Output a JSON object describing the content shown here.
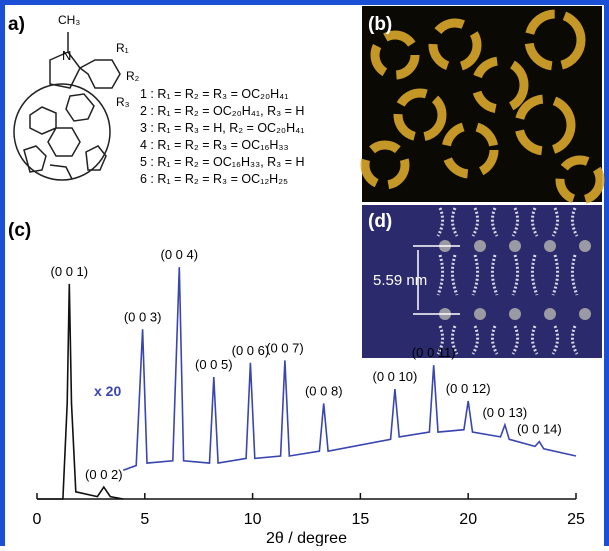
{
  "panels": {
    "a": "a)",
    "b": "(b)",
    "c": "(c)",
    "d": "(d)"
  },
  "structure": {
    "methyl": "CH₃",
    "nitrogen": "N",
    "r1": "R₁",
    "r2": "R₂",
    "r3": "R₃"
  },
  "compounds": [
    "1 : R₁ = R₂ = R₃ = OC₂₀H₄₁",
    "2 : R₁ = R₂ = OC₂₀H₄₁, R₃ = H",
    "3 : R₁ = R₃ = H, R₂ = OC₂₀H₄₁",
    "4 : R₁ = R₂ = R₃ = OC₁₆H₃₃",
    "5 : R₁ = R₂ = OC₁₆H₃₃, R₃ = H",
    "6 : R₁ = R₂ = R₃ = OC₁₂H₂₅"
  ],
  "spacing": "5.59 nm",
  "chart_data": {
    "type": "line",
    "xlabel": "2θ / degree",
    "xlim": [
      0,
      25
    ],
    "xticks": [
      0,
      5,
      10,
      15,
      20,
      25
    ],
    "ylim": [
      0,
      100
    ],
    "multiplier_label": "x 20",
    "series": [
      {
        "color": "#111111",
        "x": [
          0,
          1.2,
          1.4,
          1.5,
          1.6,
          1.8,
          2.8,
          3.1,
          3.4,
          4.0
        ],
        "values": [
          0,
          0,
          40,
          90,
          40,
          3,
          1,
          5,
          1,
          0
        ]
      },
      {
        "color": "#3a46b0",
        "x": [
          4.0,
          4.6,
          4.9,
          5.1,
          6.3,
          6.6,
          6.8,
          8.0,
          8.2,
          8.4,
          9.7,
          9.9,
          10.1,
          11.3,
          11.5,
          11.7,
          13.1,
          13.3,
          13.5,
          16.4,
          16.6,
          16.8,
          18.2,
          18.4,
          18.6,
          19.8,
          20.0,
          20.2,
          21.5,
          21.7,
          21.9,
          23.1,
          23.3,
          23.5,
          25.0
        ],
        "values": [
          12,
          14,
          71,
          15,
          16,
          97,
          16,
          15,
          51,
          15,
          17,
          57,
          17,
          18,
          58,
          18,
          20,
          40,
          20,
          25,
          46,
          26,
          28,
          56,
          28,
          29,
          41,
          28,
          26,
          31,
          25,
          22,
          24,
          21,
          18
        ]
      }
    ],
    "annotations": [
      {
        "text": "(0 0 1)",
        "x": 1.5,
        "y": 90
      },
      {
        "text": "(0 0 2)",
        "x": 3.1,
        "y": 5
      },
      {
        "text": "(0 0 3)",
        "x": 4.9,
        "y": 71
      },
      {
        "text": "(0 0 4)",
        "x": 6.6,
        "y": 97
      },
      {
        "text": "(0 0 5)",
        "x": 8.2,
        "y": 51
      },
      {
        "text": "(0 0 6)",
        "x": 9.9,
        "y": 57
      },
      {
        "text": "(0 0 7)",
        "x": 11.5,
        "y": 58
      },
      {
        "text": "(0 0 8)",
        "x": 13.3,
        "y": 40
      },
      {
        "text": "(0 0 10)",
        "x": 16.6,
        "y": 46
      },
      {
        "text": "(0 0 11)",
        "x": 18.4,
        "y": 56
      },
      {
        "text": "(0 0 12)",
        "x": 20.0,
        "y": 41
      },
      {
        "text": "(0 0 13)",
        "x": 21.7,
        "y": 31
      },
      {
        "text": "(0 0 14)",
        "x": 23.3,
        "y": 24
      }
    ]
  }
}
